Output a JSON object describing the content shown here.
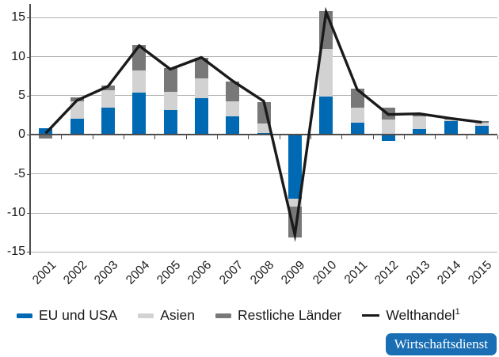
{
  "chart_data": {
    "type": "bar",
    "subtype": "stacked-bar-with-line",
    "title": "",
    "xlabel": "",
    "ylabel": "",
    "categories": [
      "2001",
      "2002",
      "2003",
      "2004",
      "2005",
      "2006",
      "2007",
      "2008",
      "2009",
      "2010",
      "2011",
      "2012",
      "2013",
      "2014",
      "2015"
    ],
    "stacked_series": [
      {
        "name": "EU und USA",
        "color": "#0069b4",
        "values": [
          0.8,
          2.1,
          3.5,
          5.4,
          3.2,
          4.7,
          2.4,
          0.2,
          -8.2,
          4.9,
          1.5,
          -0.8,
          0.7,
          1.8,
          1.1
        ]
      },
      {
        "name": "Asien",
        "color": "#d2d2d2",
        "values": [
          0,
          2.2,
          2.2,
          2.8,
          2.3,
          2.5,
          1.9,
          1.2,
          -1.0,
          6.1,
          2.0,
          2.0,
          1.7,
          0.2,
          0.4
        ]
      },
      {
        "name": "Restliche Länder",
        "color": "#787878",
        "values": [
          -0.5,
          0.5,
          0.6,
          3.3,
          3.0,
          2.7,
          2.5,
          2.8,
          -3.9,
          4.8,
          2.4,
          1.5,
          0.3,
          0.1,
          0.25
        ]
      }
    ],
    "line_series": {
      "name": "Welthandel",
      "superscript": "1",
      "color": "#1a1a1a",
      "values": [
        0.2,
        4.4,
        6.2,
        11.4,
        8.4,
        9.9,
        6.9,
        4.3,
        -12.8,
        15.7,
        5.8,
        2.6,
        2.7,
        2.1,
        1.6
      ]
    },
    "yticks": [
      15,
      10,
      5,
      0,
      -5,
      -10,
      -15
    ],
    "ylim": [
      -15.5,
      16.5
    ],
    "grid": true,
    "legend_position": "bottom"
  },
  "branding": {
    "badge_label": "Wirtschaftsdienst",
    "badge_color": "#1a6eb4"
  },
  "axis_colors": {
    "gridline": "#b0b0b0",
    "axis": "#4d4d4d",
    "text": "#1a1a1a"
  }
}
